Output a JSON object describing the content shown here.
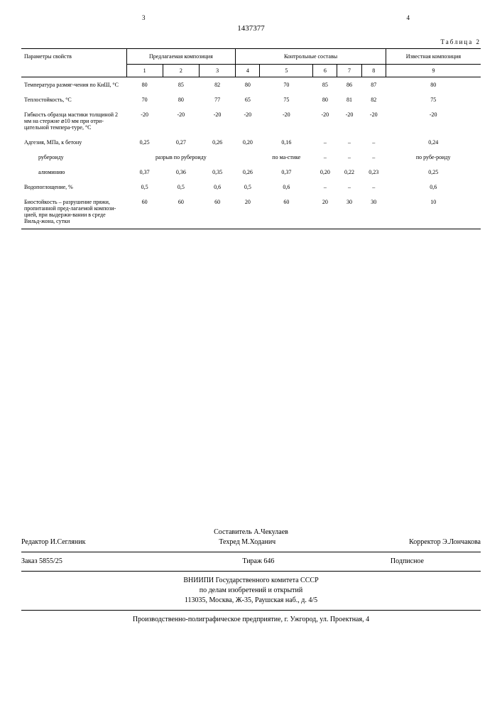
{
  "page_left": "3",
  "page_right": "4",
  "doc_number": "1437377",
  "table_caption": "Таблица 2",
  "header": {
    "param": "Параметры свойств",
    "group1": "Предлагаемая композиция",
    "group2": "Контрольные составы",
    "group3": "Известная композиция",
    "cols": [
      "1",
      "2",
      "3",
      "4",
      "5",
      "6",
      "7",
      "8",
      "9"
    ]
  },
  "rows": [
    {
      "label": "Температура размяг-чения по КиШ, °С",
      "v": [
        "80",
        "85",
        "82",
        "80",
        "70",
        "85",
        "86",
        "87",
        "80"
      ]
    },
    {
      "label": "Теплостойкость, °С",
      "v": [
        "70",
        "80",
        "77",
        "65",
        "75",
        "80",
        "81",
        "82",
        "75"
      ]
    },
    {
      "label": "Гибкость образца мастики толщиной 2 мм на стержне ⌀10 мм при отри-цательной темпера-туре, °С",
      "v": [
        "-20",
        "-20",
        "-20",
        "-20",
        "-20",
        "-20",
        "-20",
        "-20",
        "-20"
      ]
    },
    {
      "label": "Адгезия, МПа, к бетону",
      "v": [
        "0,25",
        "0,27",
        "0,26",
        "0,20",
        "0,16",
        "–",
        "–",
        "–",
        "0,24"
      ]
    },
    {
      "label": "рубероиду",
      "v": [
        "разрыв по рубероиду",
        "",
        "",
        "",
        "по ма-стике",
        "–",
        "–",
        "–",
        "по рубе-роиду"
      ],
      "span1": 3
    },
    {
      "label": "алюминию",
      "v": [
        "0,37",
        "0,36",
        "0,35",
        "0,26",
        "0,37",
        "0,20",
        "0,22",
        "0,23",
        "0,25"
      ]
    },
    {
      "label": "Водопоглощение, %",
      "v": [
        "0,5",
        "0,5",
        "0,6",
        "0,5",
        "0,6",
        "–",
        "–",
        "–",
        "0,6"
      ]
    },
    {
      "label": "Биостойкость – разрушение пряжи, пропитанной пред-лагаемой компози-цией, при выдержи-вании в среде Вильд-жона, сутки",
      "v": [
        "60",
        "60",
        "60",
        "20",
        "60",
        "20",
        "30",
        "30",
        "10"
      ]
    }
  ],
  "footer": {
    "compiler": "Составитель А.Чекулаев",
    "editor": "Редактор И.Сегляник",
    "techred": "Техред М.Ходанич",
    "corrector": "Корректор Э.Лончакова",
    "order": "Заказ 5855/25",
    "tirazh": "Тираж 646",
    "podpisnoe": "Подписное",
    "org1": "ВНИИПИ Государственного комитета СССР",
    "org2": "по делам изобретений и открытий",
    "addr": "113035, Москва, Ж-35, Раушская наб., д. 4/5",
    "printer": "Производственно-полиграфическое предприятие, г. Ужгород, ул. Проектная, 4"
  }
}
